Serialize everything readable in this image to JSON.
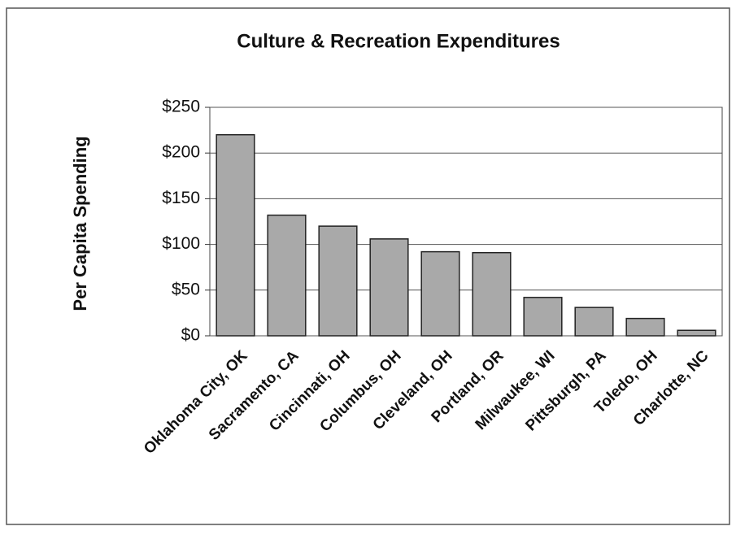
{
  "chart_data": {
    "type": "bar",
    "title": "Culture & Recreation Expenditures",
    "y_label": "Per Capita Spending",
    "categories": [
      "Oklahoma City, OK",
      "Sacramento, CA",
      "Cincinnati, OH",
      "Columbus, OH",
      "Cleveland, OH",
      "Portland, OR",
      "Milwaukee, WI",
      "Pittsburgh, PA",
      "Toledo, OH",
      "Charlotte, NC"
    ],
    "values": [
      220,
      132,
      120,
      106,
      92,
      91,
      42,
      31,
      19,
      6
    ],
    "color": "#a9a9a9",
    "ylim": [
      0,
      250
    ],
    "yticks": [
      {
        "value": 0,
        "label": "$0"
      },
      {
        "value": 50,
        "label": "$50"
      },
      {
        "value": 100,
        "label": "$100"
      },
      {
        "value": 150,
        "label": "$150"
      },
      {
        "value": 200,
        "label": "$200"
      },
      {
        "value": 250,
        "label": "$250"
      }
    ],
    "grid": true
  }
}
